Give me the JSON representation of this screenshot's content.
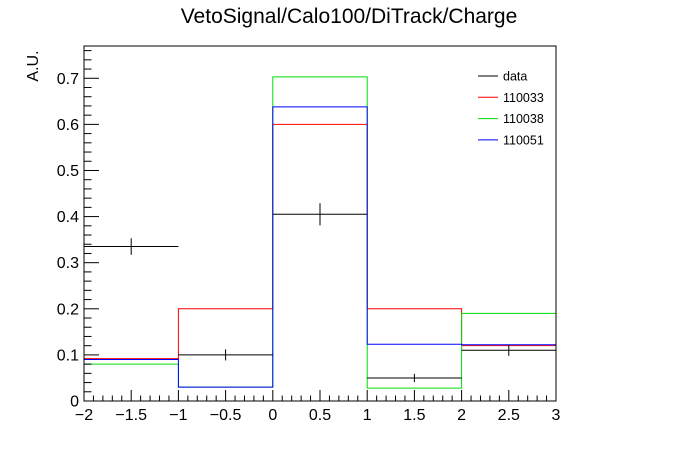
{
  "chart_data": {
    "type": "histogram",
    "title": "VetoSignal/Calo100/DiTrack/Charge",
    "xlabel": "",
    "ylabel": "A.U.",
    "xlim": [
      -2,
      3
    ],
    "ylim": [
      0,
      0.77
    ],
    "bin_edges": [
      -2,
      -1,
      0,
      1,
      2,
      3
    ],
    "x_ticks": [
      -2,
      -1.5,
      -1,
      -0.5,
      0,
      0.5,
      1,
      1.5,
      2,
      2.5,
      3
    ],
    "x_tick_labels": [
      "−2",
      "−1.5",
      "−1",
      "−0.5",
      "0",
      "0.5",
      "1",
      "1.5",
      "2",
      "2.5",
      "3"
    ],
    "y_ticks": [
      0,
      0.1,
      0.2,
      0.3,
      0.4,
      0.5,
      0.6,
      0.7
    ],
    "y_tick_labels": [
      "0",
      "0.1",
      "0.2",
      "0.3",
      "0.4",
      "0.5",
      "0.6",
      "0.7"
    ],
    "legend_position": "top-right",
    "series": [
      {
        "name": "data",
        "color": "#000000",
        "style": "points",
        "values": [
          0.335,
          0.1,
          0.405,
          0.05,
          0.11
        ],
        "errors": [
          0.018,
          0.012,
          0.024,
          0.009,
          0.012
        ]
      },
      {
        "name": "110033",
        "color": "#ff0000",
        "style": "step",
        "values": [
          0.092,
          0.2,
          0.6,
          0.2,
          0.12
        ]
      },
      {
        "name": "110038",
        "color": "#00dd00",
        "style": "step",
        "values": [
          0.08,
          0.03,
          0.703,
          0.028,
          0.19
        ]
      },
      {
        "name": "110051",
        "color": "#0000ff",
        "style": "step",
        "values": [
          0.09,
          0.03,
          0.638,
          0.123,
          0.122
        ]
      }
    ]
  }
}
